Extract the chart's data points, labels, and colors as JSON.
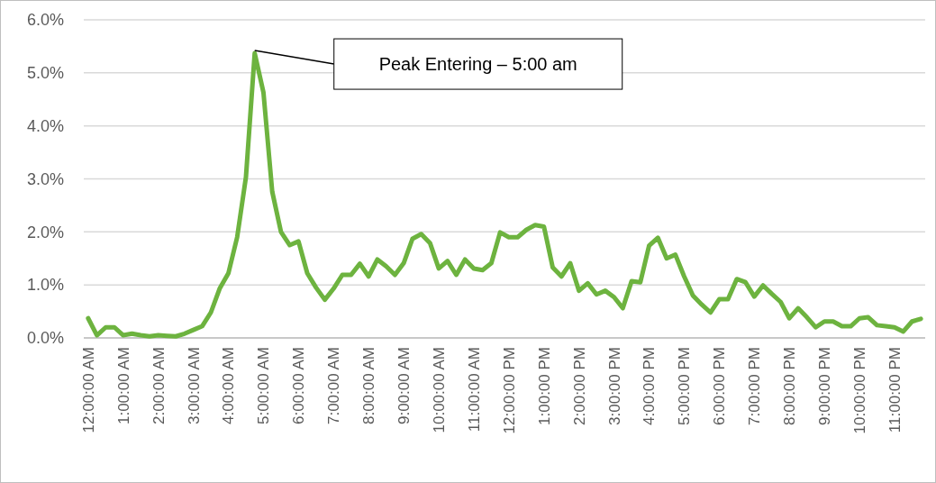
{
  "chart_data": {
    "type": "line",
    "x": [
      0,
      0.25,
      0.5,
      0.75,
      1,
      1.25,
      1.5,
      1.75,
      2,
      2.25,
      2.5,
      2.75,
      3,
      3.25,
      3.5,
      3.75,
      4,
      4.25,
      4.5,
      4.75,
      5,
      5.25,
      5.5,
      5.75,
      6,
      6.25,
      6.5,
      6.75,
      7,
      7.25,
      7.5,
      7.75,
      8,
      8.25,
      8.5,
      8.75,
      9,
      9.25,
      9.5,
      9.75,
      10,
      10.25,
      10.5,
      10.75,
      11,
      11.25,
      11.5,
      11.75,
      12,
      12.25,
      12.5,
      12.75,
      13,
      13.25,
      13.5,
      13.75,
      14,
      14.25,
      14.5,
      14.75,
      15,
      15.25,
      15.5,
      15.75,
      16,
      16.25,
      16.5,
      16.75,
      17,
      17.25,
      17.5,
      17.75,
      18,
      18.25,
      18.5,
      18.75,
      19,
      19.25,
      19.5,
      19.75,
      20,
      20.25,
      20.5,
      20.75,
      21,
      21.25,
      21.5,
      21.75,
      22,
      22.25,
      22.5,
      22.75,
      23,
      23.25,
      23.5,
      23.75
    ],
    "series": [
      {
        "color": "#6db33f",
        "values": [
          0.37,
          0.05,
          0.2,
          0.2,
          0.05,
          0.08,
          0.05,
          0.03,
          0.05,
          0.04,
          0.03,
          0.08,
          0.15,
          0.22,
          0.48,
          0.93,
          1.22,
          1.9,
          3.03,
          5.37,
          4.63,
          2.76,
          2.0,
          1.75,
          1.82,
          1.22,
          0.95,
          0.72,
          0.93,
          1.19,
          1.19,
          1.4,
          1.16,
          1.48,
          1.35,
          1.19,
          1.41,
          1.87,
          1.96,
          1.79,
          1.31,
          1.45,
          1.19,
          1.48,
          1.31,
          1.28,
          1.41,
          1.99,
          1.9,
          1.9,
          2.04,
          2.13,
          2.1,
          1.33,
          1.16,
          1.41,
          0.89,
          1.03,
          0.82,
          0.89,
          0.77,
          0.56,
          1.07,
          1.05,
          1.74,
          1.89,
          1.5,
          1.57,
          1.16,
          0.8,
          0.63,
          0.48,
          0.73,
          0.73,
          1.11,
          1.05,
          0.78,
          0.99,
          0.83,
          0.68,
          0.37,
          0.56,
          0.39,
          0.2,
          0.31,
          0.31,
          0.22,
          0.22,
          0.37,
          0.39,
          0.24,
          0.22,
          0.2,
          0.12,
          0.31,
          0.36
        ]
      }
    ],
    "xlim": [
      -0.125,
      23.875
    ],
    "xticks": [
      {
        "value": 0,
        "label": "12:00:00 AM"
      },
      {
        "value": 1,
        "label": "1:00:00 AM"
      },
      {
        "value": 2,
        "label": "2:00:00 AM"
      },
      {
        "value": 3,
        "label": "3:00:00 AM"
      },
      {
        "value": 4,
        "label": "4:00:00 AM"
      },
      {
        "value": 5,
        "label": "5:00:00 AM"
      },
      {
        "value": 6,
        "label": "6:00:00 AM"
      },
      {
        "value": 7,
        "label": "7:00:00 AM"
      },
      {
        "value": 8,
        "label": "8:00:00 AM"
      },
      {
        "value": 9,
        "label": "9:00:00 AM"
      },
      {
        "value": 10,
        "label": "10:00:00 AM"
      },
      {
        "value": 11,
        "label": "11:00:00 AM"
      },
      {
        "value": 12,
        "label": "12:00:00 PM"
      },
      {
        "value": 13,
        "label": "1:00:00 PM"
      },
      {
        "value": 14,
        "label": "2:00:00 PM"
      },
      {
        "value": 15,
        "label": "3:00:00 PM"
      },
      {
        "value": 16,
        "label": "4:00:00 PM"
      },
      {
        "value": 17,
        "label": "5:00:00 PM"
      },
      {
        "value": 18,
        "label": "6:00:00 PM"
      },
      {
        "value": 19,
        "label": "7:00:00 PM"
      },
      {
        "value": 20,
        "label": "8:00:00 PM"
      },
      {
        "value": 21,
        "label": "9:00:00 PM"
      },
      {
        "value": 22,
        "label": "10:00:00 PM"
      },
      {
        "value": 23,
        "label": "11:00:00 PM"
      }
    ],
    "ylim": [
      0,
      6
    ],
    "yticks": [
      {
        "value": 0,
        "label": "0.0%"
      },
      {
        "value": 1,
        "label": "1.0%"
      },
      {
        "value": 2,
        "label": "2.0%"
      },
      {
        "value": 3,
        "label": "3.0%"
      },
      {
        "value": 4,
        "label": "4.0%"
      },
      {
        "value": 5,
        "label": "5.0%"
      },
      {
        "value": 6,
        "label": "6.0%"
      }
    ],
    "grid": "y",
    "marker": "none",
    "line_style": "solid",
    "annotations": [
      "Peak Entering – 5:00 am"
    ]
  }
}
